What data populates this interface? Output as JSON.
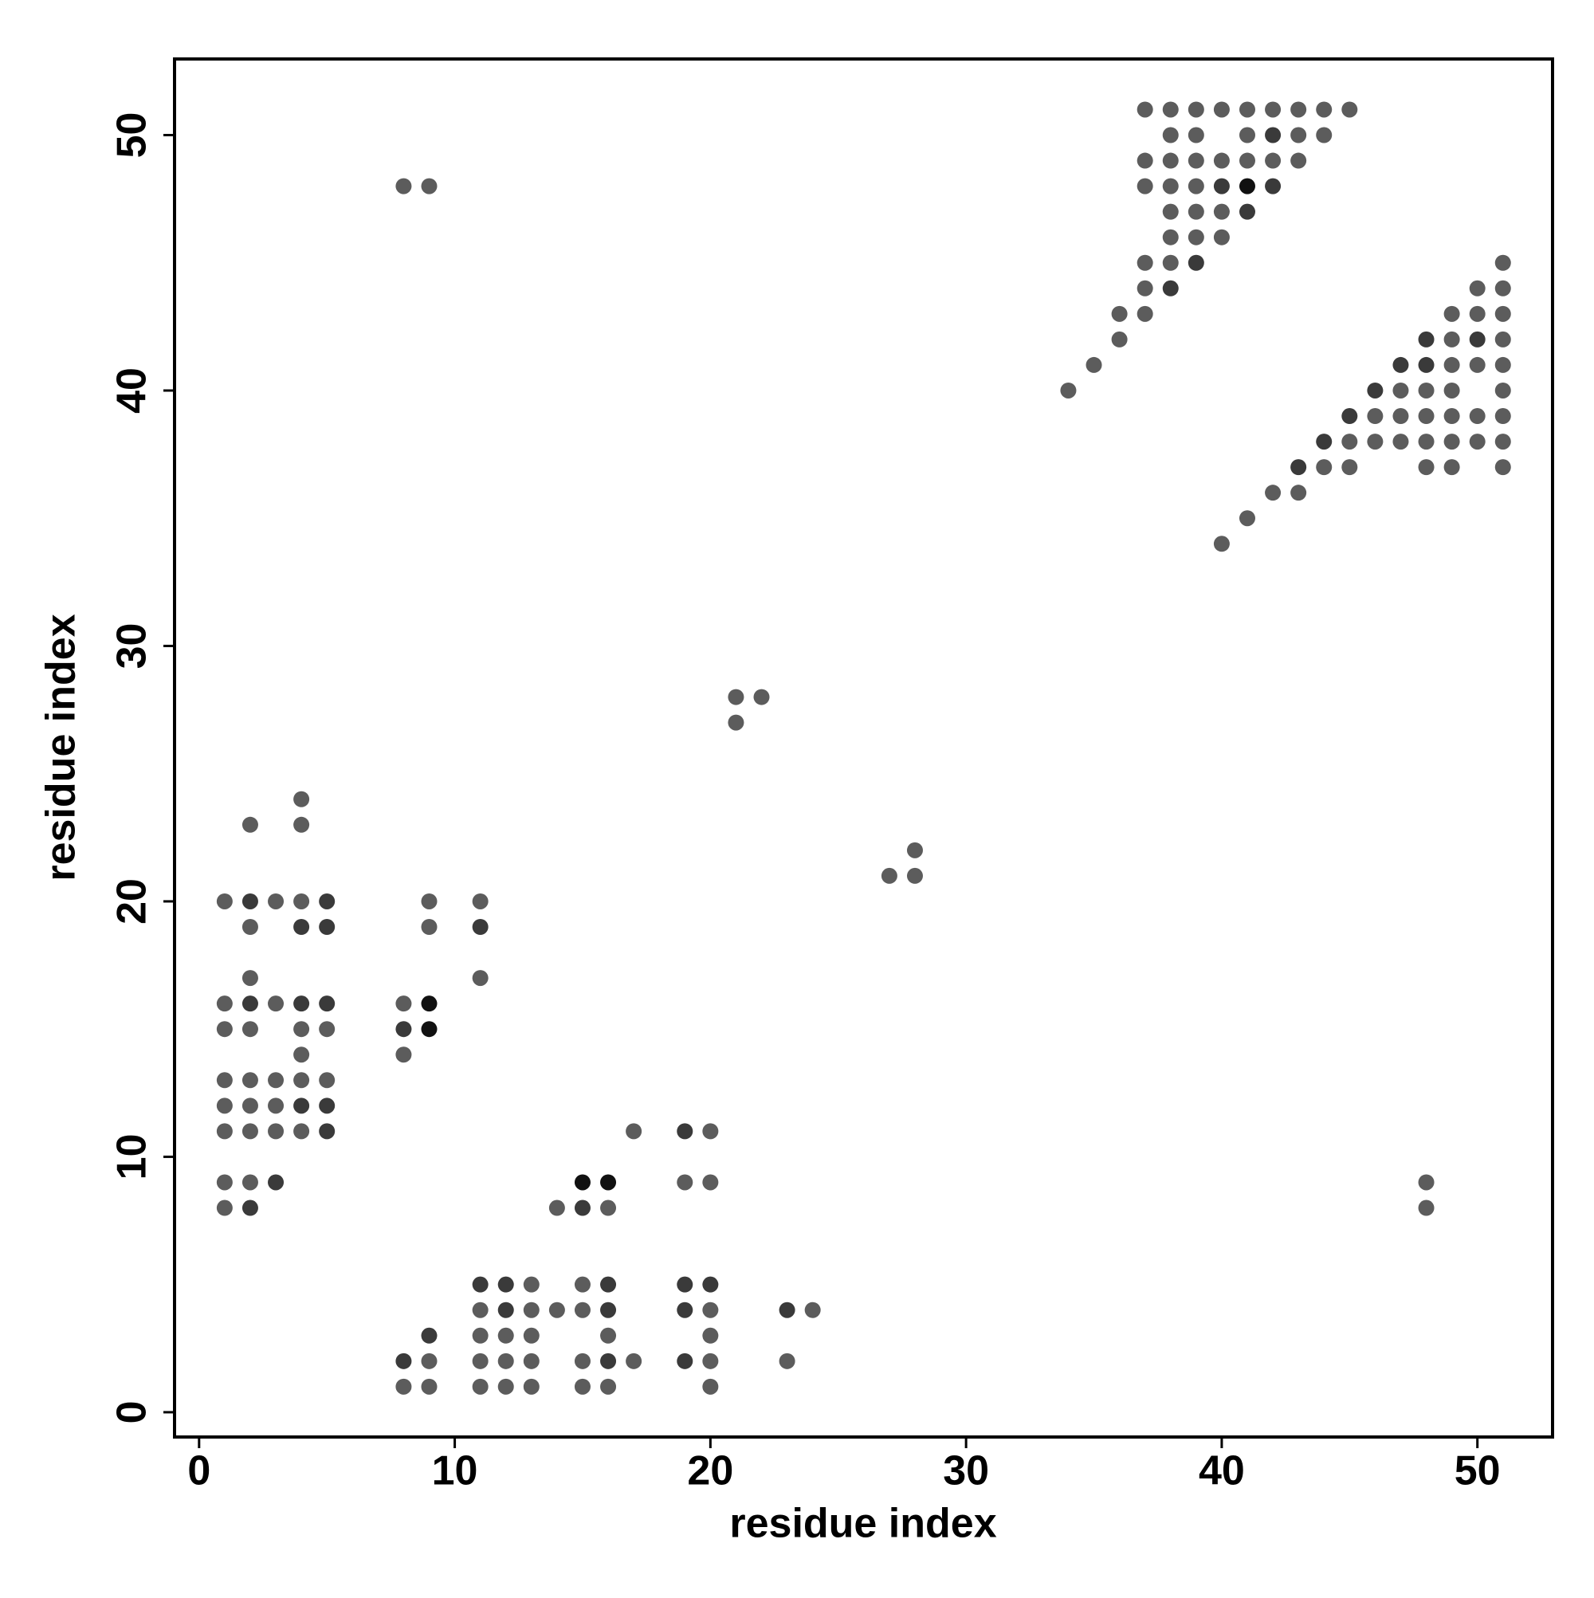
{
  "chart_data": {
    "type": "scatter",
    "xlabel": "residue index",
    "ylabel": "residue index",
    "xlim": [
      -0.96,
      52.94
    ],
    "ylim": [
      -0.97,
      52.98
    ],
    "xticks": [
      0,
      10,
      20,
      30,
      40,
      50
    ],
    "yticks": [
      0,
      10,
      20,
      30,
      40,
      50
    ],
    "series": [
      {
        "color": "#5c5c5c",
        "x": [
          8,
          9,
          11,
          12,
          13,
          15,
          16,
          20,
          9,
          11,
          12,
          13,
          15,
          17,
          20,
          23,
          11,
          12,
          13,
          16,
          20,
          11,
          13,
          14,
          15,
          20,
          24,
          13,
          15,
          1,
          14,
          16,
          48,
          1,
          2,
          19,
          20,
          48,
          1,
          2,
          3,
          4,
          17,
          20,
          1,
          2,
          3,
          1,
          2,
          3,
          4,
          5,
          4,
          8,
          1,
          2,
          4,
          5,
          1,
          3,
          8,
          2,
          11,
          2,
          9,
          1,
          3,
          4,
          9,
          11,
          27,
          28,
          28,
          2,
          4,
          4,
          21,
          21,
          22,
          40,
          41,
          42,
          43,
          44,
          45,
          48,
          49,
          51,
          45,
          46,
          47,
          48,
          49,
          50,
          51,
          46,
          47,
          48,
          49,
          50,
          51,
          34,
          47,
          48,
          49,
          51,
          35,
          49,
          50,
          51,
          36,
          49,
          51,
          36,
          37,
          49,
          50,
          51,
          37,
          50,
          51,
          37,
          38,
          51,
          38,
          39,
          40,
          38,
          39,
          40,
          8,
          9,
          37,
          38,
          39,
          37,
          38,
          39,
          40,
          41,
          42,
          43,
          38,
          39,
          41,
          43,
          44,
          37,
          38,
          39,
          40,
          41,
          42,
          43,
          44,
          45
        ],
        "values": [
          1,
          1,
          1,
          1,
          1,
          1,
          1,
          1,
          2,
          2,
          2,
          2,
          2,
          2,
          2,
          2,
          3,
          3,
          3,
          3,
          3,
          4,
          4,
          4,
          4,
          4,
          4,
          5,
          5,
          8,
          8,
          8,
          8,
          9,
          9,
          9,
          9,
          9,
          11,
          11,
          11,
          11,
          11,
          11,
          12,
          12,
          12,
          13,
          13,
          13,
          13,
          13,
          14,
          14,
          15,
          15,
          15,
          15,
          16,
          16,
          16,
          17,
          17,
          19,
          19,
          20,
          20,
          20,
          20,
          20,
          21,
          21,
          22,
          23,
          23,
          24,
          27,
          28,
          28,
          34,
          35,
          36,
          36,
          37,
          37,
          37,
          37,
          37,
          38,
          38,
          38,
          38,
          38,
          38,
          38,
          39,
          39,
          39,
          39,
          39,
          39,
          40,
          40,
          40,
          40,
          40,
          41,
          41,
          41,
          41,
          42,
          42,
          42,
          43,
          43,
          43,
          43,
          43,
          44,
          44,
          44,
          45,
          45,
          45,
          46,
          46,
          46,
          47,
          47,
          47,
          48,
          48,
          48,
          48,
          48,
          49,
          49,
          49,
          49,
          49,
          49,
          49,
          50,
          50,
          50,
          50,
          50,
          51,
          51,
          51,
          51,
          51,
          51,
          51,
          51,
          51
        ]
      },
      {
        "color": "#3a3a3a",
        "x": [
          8,
          16,
          19,
          9,
          12,
          16,
          19,
          23,
          11,
          12,
          16,
          19,
          20,
          2,
          15,
          3,
          5,
          19,
          4,
          5,
          8,
          2,
          4,
          5,
          4,
          5,
          11,
          2,
          5,
          43,
          44,
          45,
          46,
          47,
          48,
          48,
          50,
          38,
          39,
          41,
          40,
          42,
          42
        ],
        "values": [
          2,
          2,
          2,
          3,
          4,
          4,
          4,
          4,
          5,
          5,
          5,
          5,
          5,
          8,
          8,
          9,
          11,
          11,
          12,
          12,
          15,
          16,
          16,
          16,
          19,
          19,
          19,
          20,
          20,
          37,
          38,
          39,
          40,
          41,
          41,
          42,
          42,
          44,
          45,
          47,
          48,
          48,
          50
        ]
      },
      {
        "color": "#111111",
        "x": [
          15,
          16,
          9,
          9,
          41
        ],
        "values": [
          9,
          9,
          15,
          16,
          48
        ]
      }
    ]
  }
}
